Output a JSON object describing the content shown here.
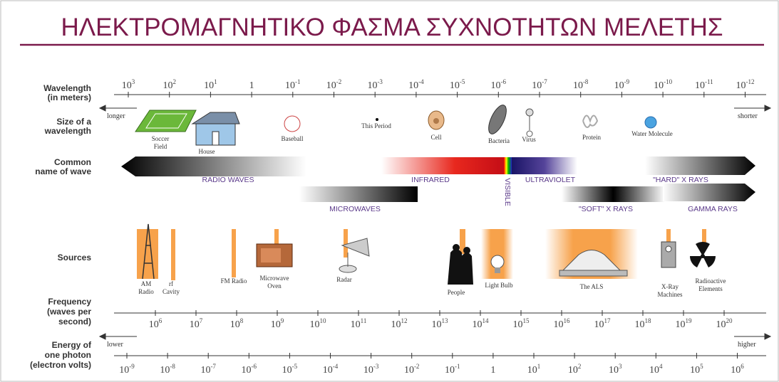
{
  "title": "ΗΛΕΚΤΡΟΜΑΓΝΗΤΙΚΟ ΦΑΣΜΑ ΣΥΧΝΟΤΗΤΩΝ ΜΕΛΕΤΗΣ",
  "wavelength": {
    "label": [
      "Wavelength",
      "(in meters)"
    ],
    "left": "longer",
    "right": "shorter",
    "ticks": [
      {
        "base": "10",
        "exp": "3"
      },
      {
        "base": "10",
        "exp": "2"
      },
      {
        "base": "10",
        "exp": "1"
      },
      {
        "base": "1"
      },
      {
        "base": "10",
        "exp": "-1"
      },
      {
        "base": "10",
        "exp": "-2"
      },
      {
        "base": "10",
        "exp": "-3"
      },
      {
        "base": "10",
        "exp": "-4"
      },
      {
        "base": "10",
        "exp": "-5"
      },
      {
        "base": "10",
        "exp": "-6"
      },
      {
        "base": "10",
        "exp": "-7"
      },
      {
        "base": "10",
        "exp": "-8"
      },
      {
        "base": "10",
        "exp": "-9"
      },
      {
        "base": "10",
        "exp": "-10"
      },
      {
        "base": "10",
        "exp": "-11"
      },
      {
        "base": "10",
        "exp": "-12"
      }
    ]
  },
  "size": {
    "label": [
      "Size of a",
      "wavelength"
    ],
    "items": [
      [
        "Soccer",
        "Field"
      ],
      [
        "House"
      ],
      [
        "Baseball"
      ],
      [
        "This Period"
      ],
      [
        "Cell"
      ],
      [
        "Bacteria"
      ],
      [
        "Virus"
      ],
      [
        "Protein"
      ],
      [
        "Water Molecule"
      ]
    ]
  },
  "waves": {
    "label": [
      "Common",
      "name of wave"
    ],
    "names": [
      "RADIO WAVES",
      "INFRARED",
      "VISIBLE",
      "ULTRAVIOLET",
      "\"HARD\" X RAYS",
      "MICROWAVES",
      "\"SOFT\" X RAYS",
      "GAMMA RAYS"
    ]
  },
  "sources": {
    "label": [
      "Sources"
    ],
    "items": [
      [
        "AM",
        "Radio"
      ],
      [
        "rf",
        "Cavity"
      ],
      [
        "FM Radio"
      ],
      [
        "Microwave",
        "Oven"
      ],
      [
        "Radar"
      ],
      [
        "People"
      ],
      [
        "Light Bulb"
      ],
      [
        "The ALS"
      ],
      [
        "X-Ray",
        "Machines"
      ],
      [
        "Radioactive",
        "Elements"
      ]
    ]
  },
  "frequency": {
    "label": [
      "Frequency",
      "(waves per",
      "second)"
    ],
    "ticks": [
      {
        "base": "10",
        "exp": "6"
      },
      {
        "base": "10",
        "exp": "7"
      },
      {
        "base": "10",
        "exp": "8"
      },
      {
        "base": "10",
        "exp": "9"
      },
      {
        "base": "10",
        "exp": "10"
      },
      {
        "base": "10",
        "exp": "11"
      },
      {
        "base": "10",
        "exp": "12"
      },
      {
        "base": "10",
        "exp": "13"
      },
      {
        "base": "10",
        "exp": "14"
      },
      {
        "base": "10",
        "exp": "15"
      },
      {
        "base": "10",
        "exp": "16"
      },
      {
        "base": "10",
        "exp": "17"
      },
      {
        "base": "10",
        "exp": "18"
      },
      {
        "base": "10",
        "exp": "19"
      },
      {
        "base": "10",
        "exp": "20"
      }
    ]
  },
  "energy": {
    "label": [
      "Energy of",
      "one photon",
      "(electron volts)"
    ],
    "left": "lower",
    "right": "higher",
    "ticks": [
      {
        "base": "10",
        "exp": "-9"
      },
      {
        "base": "10",
        "exp": "-8"
      },
      {
        "base": "10",
        "exp": "-7"
      },
      {
        "base": "10",
        "exp": "-6"
      },
      {
        "base": "10",
        "exp": "-5"
      },
      {
        "base": "10",
        "exp": "-4"
      },
      {
        "base": "10",
        "exp": "-3"
      },
      {
        "base": "10",
        "exp": "-2"
      },
      {
        "base": "10",
        "exp": "-1"
      },
      {
        "base": "1"
      },
      {
        "base": "10",
        "exp": "1"
      },
      {
        "base": "10",
        "exp": "2"
      },
      {
        "base": "10",
        "exp": "3"
      },
      {
        "base": "10",
        "exp": "4"
      },
      {
        "base": "10",
        "exp": "5"
      },
      {
        "base": "10",
        "exp": "6"
      }
    ]
  }
}
